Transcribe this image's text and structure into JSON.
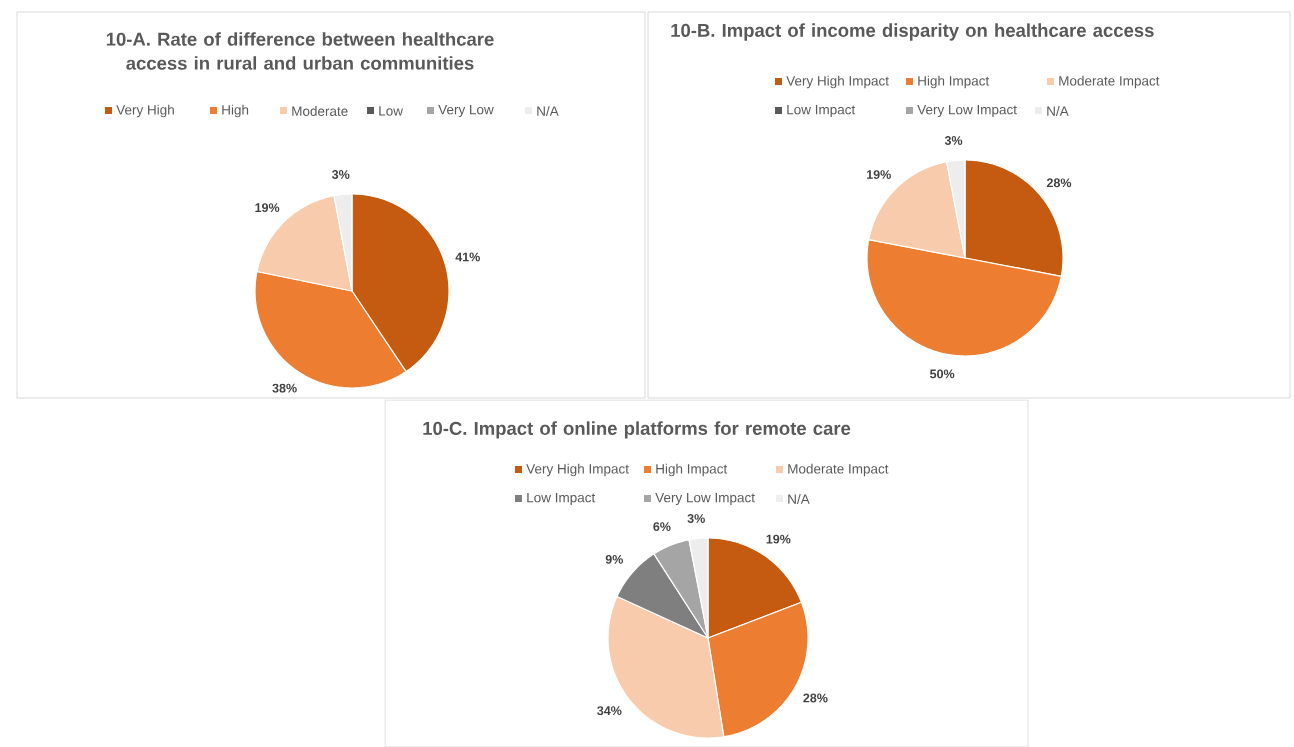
{
  "chart_data": [
    {
      "type": "pie",
      "title": "10-A.  Rate of difference between healthcare access in rural and urban communities",
      "categories": [
        "Very High",
        "High",
        "Moderate",
        "Low",
        "Very Low",
        "N/A"
      ],
      "values": [
        41,
        38,
        19,
        0,
        0,
        3
      ],
      "colors": [
        "#c55a11",
        "#ed7d31",
        "#f8cbad",
        "#595959",
        "#a5a5a5",
        "#ededed"
      ],
      "value_labels": [
        "41%",
        "38%",
        "19%",
        null,
        null,
        "3%"
      ],
      "legend": "top"
    },
    {
      "type": "pie",
      "title": "10-B.  Impact of income disparity on healthcare access",
      "categories": [
        "Very High Impact",
        "High Impact",
        "Moderate Impact",
        "Low Impact",
        "Very Low Impact",
        "N/A"
      ],
      "values": [
        28,
        50,
        19,
        0,
        0,
        3
      ],
      "colors": [
        "#c55a11",
        "#ed7d31",
        "#f8cbad",
        "#595959",
        "#a5a5a5",
        "#ededed"
      ],
      "value_labels": [
        "28%",
        "50%",
        "19%",
        null,
        null,
        "3%"
      ],
      "legend": "top"
    },
    {
      "type": "pie",
      "title": "10-C.   Impact of online platforms for remote care",
      "categories": [
        "Very High Impact",
        "High Impact",
        "Moderate Impact",
        "Low Impact",
        "Very Low Impact",
        "N/A"
      ],
      "values": [
        19,
        28,
        34,
        9,
        6,
        3
      ],
      "colors": [
        "#c55a11",
        "#ed7d31",
        "#f8cbad",
        "#7f7f7f",
        "#a5a5a5",
        "#ededed"
      ],
      "value_labels": [
        "19%",
        "28%",
        "34%",
        "9%",
        "6%",
        "3%"
      ],
      "legend": "top"
    }
  ]
}
